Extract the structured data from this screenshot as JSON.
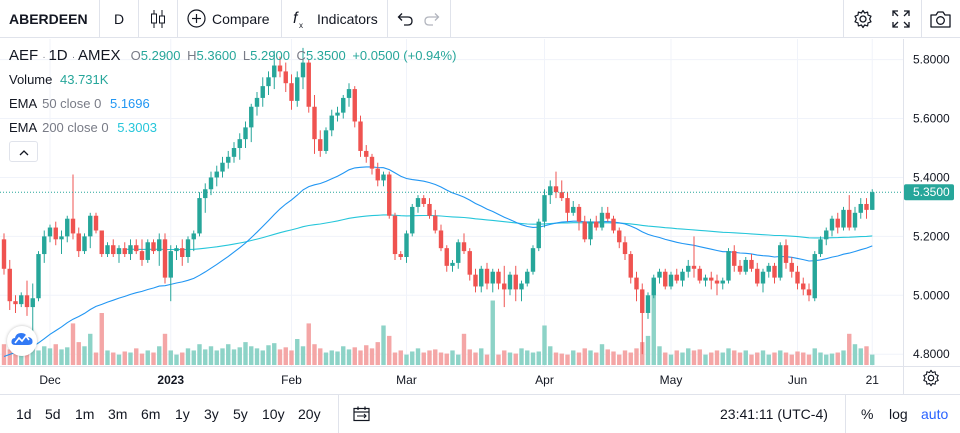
{
  "toolbar": {
    "symbol": "ABERDEEN",
    "interval": "D",
    "compare_label": "Compare",
    "indicators_label": "Indicators"
  },
  "legend": {
    "ticker": "AEF",
    "interval": "1D",
    "exchange": "AMEX",
    "o_label": "O",
    "o_value": "5.2900",
    "h_label": "H",
    "h_value": "5.3600",
    "l_label": "L",
    "l_value": "5.2900",
    "c_label": "C",
    "c_value": "5.3500",
    "change": "+0.0500 (+0.94%)",
    "volume_label": "Volume",
    "volume_value": "43.731K",
    "ema50_label": "EMA",
    "ema50_params": "50 close 0",
    "ema50_value": "5.1696",
    "ema200_label": "EMA",
    "ema200_params": "200 close 0",
    "ema200_value": "5.3003"
  },
  "bottombar": {
    "ranges": [
      "1d",
      "5d",
      "1m",
      "3m",
      "6m",
      "1y",
      "3y",
      "5y",
      "10y",
      "20y"
    ],
    "time": "23:41:11 (UTC-4)",
    "percent_label": "%",
    "log_label": "log",
    "auto_label": "auto"
  },
  "colors": {
    "up": "#26a69a",
    "down": "#ef5350",
    "up_vol": "#8dd3c7",
    "down_vol": "#f4a6a6",
    "ema50": "#2196f3",
    "ema200": "#26c6da",
    "price_label_bg": "#26a69a",
    "auto_active": "#2962ff"
  },
  "chart_data": {
    "type": "candlestick",
    "price_ticks": [
      "5.8000",
      "5.6000",
      "5.4000",
      "5.2000",
      "5.0000",
      "4.8000"
    ],
    "ylim": [
      4.76,
      5.87
    ],
    "x_ticks": [
      "Dec",
      "2023",
      "Feb",
      "Mar",
      "Apr",
      "May",
      "Jun",
      "21"
    ],
    "last_price_label": "5.3500",
    "series": [
      {
        "name": "ohlc",
        "values": [
          [
            5.19,
            5.21,
            5.07,
            5.09
          ],
          [
            5.09,
            5.12,
            4.95,
            4.98
          ],
          [
            4.98,
            5.0,
            4.94,
            4.97
          ],
          [
            4.97,
            5.01,
            4.96,
            5.0
          ],
          [
            5.0,
            5.05,
            4.93,
            4.96
          ],
          [
            4.96,
            5.04,
            4.84,
            4.99
          ],
          [
            4.99,
            5.15,
            4.98,
            5.14
          ],
          [
            5.14,
            5.22,
            5.11,
            5.2
          ],
          [
            5.2,
            5.24,
            5.18,
            5.23
          ],
          [
            5.23,
            5.25,
            5.17,
            5.19
          ],
          [
            5.19,
            5.22,
            5.14,
            5.2
          ],
          [
            5.2,
            5.27,
            5.18,
            5.26
          ],
          [
            5.26,
            5.41,
            5.19,
            5.21
          ],
          [
            5.21,
            5.23,
            5.13,
            5.15
          ],
          [
            5.15,
            5.21,
            5.14,
            5.2
          ],
          [
            5.2,
            5.28,
            5.16,
            5.27
          ],
          [
            5.27,
            5.28,
            5.21,
            5.22
          ],
          [
            5.22,
            5.22,
            5.13,
            5.14
          ],
          [
            5.14,
            5.18,
            5.13,
            5.17
          ],
          [
            5.17,
            5.19,
            5.13,
            5.14
          ],
          [
            5.14,
            5.17,
            5.11,
            5.16
          ],
          [
            5.16,
            5.18,
            5.13,
            5.14
          ],
          [
            5.14,
            5.19,
            5.12,
            5.17
          ],
          [
            5.17,
            5.19,
            5.14,
            5.15
          ],
          [
            5.15,
            5.19,
            5.1,
            5.12
          ],
          [
            5.12,
            5.19,
            5.11,
            5.18
          ],
          [
            5.18,
            5.19,
            5.14,
            5.15
          ],
          [
            5.15,
            5.21,
            5.1,
            5.19
          ],
          [
            5.19,
            5.21,
            5.04,
            5.06
          ],
          [
            5.06,
            5.17,
            4.98,
            5.15
          ],
          [
            5.15,
            5.17,
            5.12,
            5.16
          ],
          [
            5.16,
            5.19,
            5.1,
            5.13
          ],
          [
            5.13,
            5.2,
            5.11,
            5.19
          ],
          [
            5.19,
            5.22,
            5.15,
            5.21
          ],
          [
            5.21,
            5.35,
            5.2,
            5.33
          ],
          [
            5.33,
            5.38,
            5.28,
            5.36
          ],
          [
            5.36,
            5.42,
            5.34,
            5.4
          ],
          [
            5.4,
            5.44,
            5.37,
            5.42
          ],
          [
            5.42,
            5.47,
            5.4,
            5.45
          ],
          [
            5.45,
            5.49,
            5.43,
            5.47
          ],
          [
            5.47,
            5.52,
            5.45,
            5.5
          ],
          [
            5.5,
            5.55,
            5.46,
            5.53
          ],
          [
            5.53,
            5.59,
            5.5,
            5.57
          ],
          [
            5.57,
            5.65,
            5.52,
            5.64
          ],
          [
            5.64,
            5.69,
            5.61,
            5.67
          ],
          [
            5.67,
            5.74,
            5.64,
            5.71
          ],
          [
            5.71,
            5.76,
            5.68,
            5.74
          ],
          [
            5.74,
            5.83,
            5.7,
            5.78
          ],
          [
            5.78,
            5.81,
            5.74,
            5.76
          ],
          [
            5.76,
            5.79,
            5.69,
            5.72
          ],
          [
            5.72,
            5.75,
            5.63,
            5.66
          ],
          [
            5.66,
            5.76,
            5.64,
            5.74
          ],
          [
            5.74,
            5.84,
            5.7,
            5.79
          ],
          [
            5.79,
            5.8,
            5.62,
            5.64
          ],
          [
            5.64,
            5.68,
            5.48,
            5.53
          ],
          [
            5.53,
            5.56,
            5.47,
            5.49
          ],
          [
            5.49,
            5.57,
            5.48,
            5.56
          ],
          [
            5.56,
            5.63,
            5.54,
            5.61
          ],
          [
            5.61,
            5.64,
            5.59,
            5.62
          ],
          [
            5.62,
            5.68,
            5.6,
            5.67
          ],
          [
            5.67,
            5.72,
            5.64,
            5.7
          ],
          [
            5.7,
            5.71,
            5.57,
            5.59
          ],
          [
            5.59,
            5.61,
            5.47,
            5.49
          ],
          [
            5.49,
            5.51,
            5.45,
            5.47
          ],
          [
            5.47,
            5.48,
            5.41,
            5.43
          ],
          [
            5.43,
            5.45,
            5.37,
            5.39
          ],
          [
            5.39,
            5.42,
            5.37,
            5.41
          ],
          [
            5.41,
            5.42,
            5.26,
            5.27
          ],
          [
            5.27,
            5.28,
            5.12,
            5.14
          ],
          [
            5.14,
            5.15,
            5.12,
            5.13
          ],
          [
            5.13,
            5.22,
            5.11,
            5.21
          ],
          [
            5.21,
            5.31,
            5.2,
            5.3
          ],
          [
            5.3,
            5.34,
            5.28,
            5.33
          ],
          [
            5.33,
            5.34,
            5.3,
            5.31
          ],
          [
            5.31,
            5.33,
            5.26,
            5.27
          ],
          [
            5.27,
            5.29,
            5.21,
            5.22
          ],
          [
            5.22,
            5.24,
            5.15,
            5.16
          ],
          [
            5.16,
            5.17,
            5.08,
            5.1
          ],
          [
            5.1,
            5.12,
            5.08,
            5.11
          ],
          [
            5.11,
            5.19,
            5.09,
            5.18
          ],
          [
            5.18,
            5.21,
            5.14,
            5.15
          ],
          [
            5.15,
            5.16,
            5.05,
            5.07
          ],
          [
            5.07,
            5.09,
            5.01,
            5.03
          ],
          [
            5.03,
            5.1,
            5.01,
            5.09
          ],
          [
            5.09,
            5.11,
            5.02,
            5.04
          ],
          [
            5.04,
            5.09,
            5.01,
            5.08
          ],
          [
            5.08,
            5.09,
            5.02,
            5.04
          ],
          [
            5.04,
            5.1,
            4.96,
            5.02
          ],
          [
            5.02,
            5.08,
            5.0,
            5.07
          ],
          [
            5.07,
            5.1,
            4.98,
            5.02
          ],
          [
            5.02,
            5.05,
            4.98,
            5.04
          ],
          [
            5.04,
            5.09,
            5.03,
            5.08
          ],
          [
            5.08,
            5.17,
            5.07,
            5.16
          ],
          [
            5.16,
            5.26,
            5.15,
            5.25
          ],
          [
            5.25,
            5.36,
            5.23,
            5.34
          ],
          [
            5.34,
            5.39,
            5.31,
            5.37
          ],
          [
            5.37,
            5.42,
            5.33,
            5.35
          ],
          [
            5.35,
            5.39,
            5.32,
            5.33
          ],
          [
            5.33,
            5.35,
            5.25,
            5.28
          ],
          [
            5.28,
            5.32,
            5.27,
            5.3
          ],
          [
            5.3,
            5.31,
            5.22,
            5.25
          ],
          [
            5.25,
            5.27,
            5.18,
            5.19
          ],
          [
            5.19,
            5.26,
            5.17,
            5.25
          ],
          [
            5.25,
            5.27,
            5.22,
            5.23
          ],
          [
            5.23,
            5.3,
            5.22,
            5.28
          ],
          [
            5.28,
            5.3,
            5.25,
            5.26
          ],
          [
            5.26,
            5.27,
            5.21,
            5.22
          ],
          [
            5.22,
            5.23,
            5.16,
            5.18
          ],
          [
            5.18,
            5.2,
            5.12,
            5.14
          ],
          [
            5.14,
            5.15,
            5.04,
            5.06
          ],
          [
            5.06,
            5.08,
            4.98,
            5.02
          ],
          [
            5.02,
            5.04,
            4.8,
            4.94
          ],
          [
            4.94,
            5.01,
            4.92,
            5.0
          ],
          [
            5.0,
            5.07,
            4.99,
            5.06
          ],
          [
            5.06,
            5.09,
            5.04,
            5.08
          ],
          [
            5.08,
            5.09,
            5.02,
            5.03
          ],
          [
            5.03,
            5.08,
            5.02,
            5.07
          ],
          [
            5.07,
            5.09,
            5.04,
            5.05
          ],
          [
            5.05,
            5.09,
            5.03,
            5.08
          ],
          [
            5.08,
            5.12,
            5.06,
            5.1
          ],
          [
            5.1,
            5.2,
            5.06,
            5.09
          ],
          [
            5.09,
            5.1,
            5.04,
            5.05
          ],
          [
            5.05,
            5.07,
            5.03,
            5.06
          ],
          [
            5.06,
            5.08,
            5.02,
            5.05
          ],
          [
            5.05,
            5.07,
            5.0,
            5.04
          ],
          [
            5.04,
            5.06,
            5.02,
            5.05
          ],
          [
            5.05,
            5.16,
            5.04,
            5.15
          ],
          [
            5.15,
            5.17,
            5.08,
            5.1
          ],
          [
            5.1,
            5.12,
            5.07,
            5.08
          ],
          [
            5.08,
            5.13,
            5.07,
            5.12
          ],
          [
            5.12,
            5.14,
            5.08,
            5.09
          ],
          [
            5.09,
            5.11,
            5.03,
            5.04
          ],
          [
            5.04,
            5.09,
            5.01,
            5.08
          ],
          [
            5.08,
            5.11,
            5.06,
            5.1
          ],
          [
            5.1,
            5.11,
            5.04,
            5.06
          ],
          [
            5.06,
            5.18,
            5.05,
            5.17
          ],
          [
            5.17,
            5.19,
            5.09,
            5.11
          ],
          [
            5.11,
            5.13,
            5.06,
            5.08
          ],
          [
            5.08,
            5.1,
            5.02,
            5.04
          ],
          [
            5.04,
            5.06,
            5.0,
            5.02
          ],
          [
            5.02,
            5.04,
            4.98,
            5.0
          ],
          [
            4.99,
            5.15,
            4.98,
            5.14
          ],
          [
            5.14,
            5.2,
            5.13,
            5.19
          ],
          [
            5.19,
            5.23,
            5.17,
            5.22
          ],
          [
            5.22,
            5.27,
            5.2,
            5.26
          ],
          [
            5.26,
            5.28,
            5.21,
            5.23
          ],
          [
            5.23,
            5.3,
            5.22,
            5.29
          ],
          [
            5.29,
            5.34,
            5.22,
            5.23
          ],
          [
            5.23,
            5.3,
            5.22,
            5.28
          ],
          [
            5.28,
            5.33,
            5.26,
            5.31
          ],
          [
            5.31,
            5.33,
            5.26,
            5.29
          ],
          [
            5.29,
            5.36,
            5.29,
            5.35
          ]
        ]
      },
      {
        "name": "volume",
        "values": [
          20,
          15,
          28,
          10,
          12,
          22,
          14,
          18,
          16,
          20,
          15,
          17,
          40,
          22,
          18,
          30,
          12,
          50,
          14,
          12,
          10,
          13,
          12,
          16,
          11,
          14,
          12,
          18,
          30,
          14,
          10,
          12,
          16,
          14,
          20,
          15,
          18,
          14,
          16,
          20,
          15,
          17,
          22,
          18,
          16,
          14,
          19,
          21,
          15,
          17,
          14,
          25,
          18,
          40,
          20,
          16,
          12,
          14,
          13,
          18,
          15,
          17,
          14,
          19,
          16,
          22,
          38,
          28,
          12,
          14,
          10,
          13,
          16,
          12,
          14,
          15,
          12,
          11,
          14,
          10,
          30,
          15,
          12,
          16,
          10,
          62,
          10,
          14,
          12,
          11,
          16,
          14,
          12,
          13,
          38,
          18,
          12,
          11,
          10,
          14,
          12,
          16,
          14,
          12,
          20,
          15,
          13,
          10,
          14,
          12,
          16,
          22,
          28,
          70,
          18,
          12,
          10,
          14,
          12,
          16,
          14,
          15,
          10,
          12,
          14,
          12,
          16,
          14,
          12,
          14,
          10,
          12,
          14,
          10,
          12,
          14,
          12,
          10,
          13,
          12,
          10,
          16,
          12,
          10,
          11,
          12,
          14,
          30,
          20,
          16,
          18,
          10,
          12,
          14,
          16
        ]
      }
    ]
  }
}
